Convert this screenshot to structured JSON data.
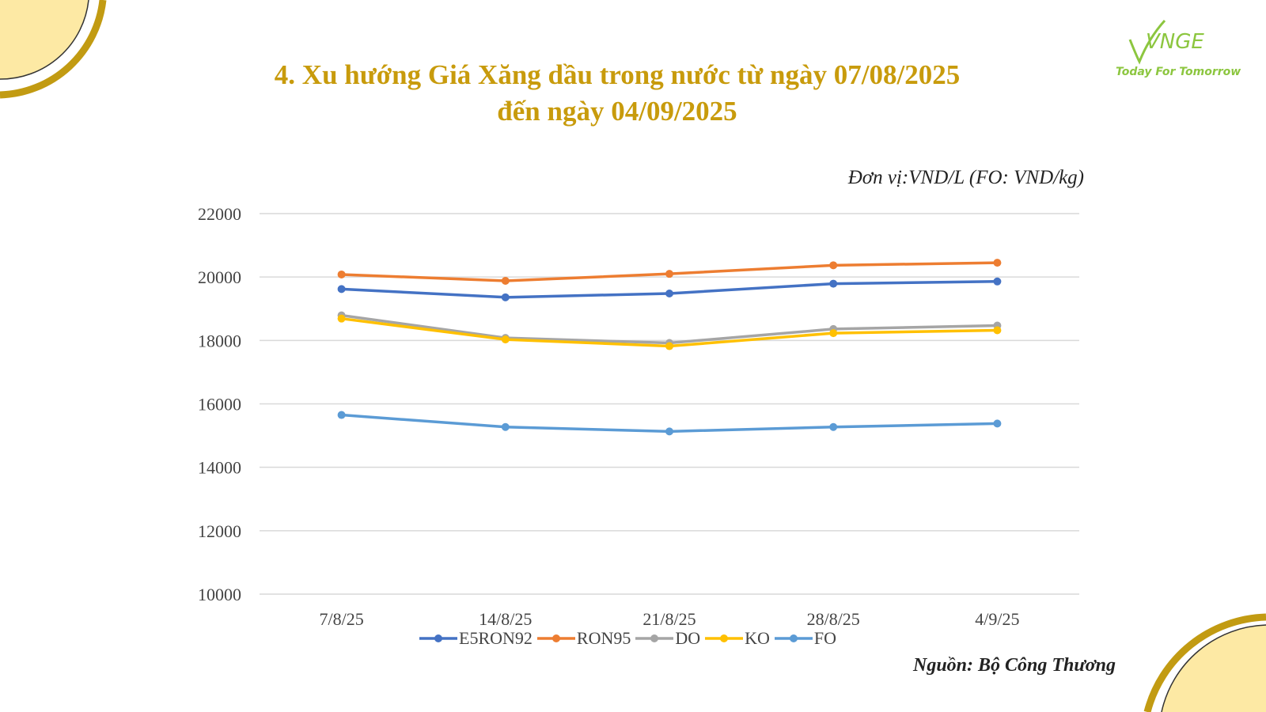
{
  "title_line1": "4. Xu hướng Giá Xăng dầu trong nước từ ngày 07/08/2025",
  "title_line2": "đến ngày 04/09/2025",
  "title_color": "#c89b0c",
  "logo": {
    "mark": "VNGE",
    "tagline": "Today For Tomorrow",
    "color": "#8cc63f"
  },
  "unit_label": "Đơn vị:VND/L (FO: VND/kg)",
  "source_label": "Nguồn: Bộ Công Thương",
  "accent": {
    "ring": "#c29b12",
    "fill": "#fde9a4"
  },
  "chart_data": {
    "type": "line",
    "categories": [
      "7/8/25",
      "14/8/25",
      "21/8/25",
      "28/8/25",
      "4/9/25"
    ],
    "ylim": [
      10000,
      22000
    ],
    "yticks": [
      10000,
      12000,
      14000,
      16000,
      18000,
      20000,
      22000
    ],
    "grid": true,
    "legend_position": "bottom",
    "series": [
      {
        "name": "E5RON92",
        "color": "#4472c4",
        "values": [
          19620,
          19360,
          19480,
          19790,
          19860
        ]
      },
      {
        "name": "RON95",
        "color": "#ed7d31",
        "values": [
          20080,
          19880,
          20100,
          20370,
          20450
        ]
      },
      {
        "name": "DO",
        "color": "#a5a5a5",
        "values": [
          18790,
          18080,
          17920,
          18360,
          18470
        ]
      },
      {
        "name": "KO",
        "color": "#ffc000",
        "values": [
          18690,
          18030,
          17820,
          18230,
          18320
        ]
      },
      {
        "name": "FO",
        "color": "#5b9bd5",
        "values": [
          15650,
          15270,
          15130,
          15270,
          15380
        ]
      }
    ]
  }
}
